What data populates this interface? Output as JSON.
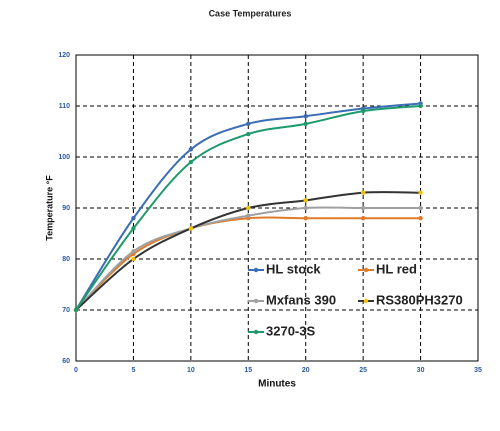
{
  "chart_data": {
    "type": "line",
    "title": "Case Temperatures",
    "x_label": "Minutes",
    "y_label": "Temperature °F",
    "x": [
      0,
      5,
      10,
      15,
      20,
      25,
      30
    ],
    "series": [
      {
        "name": "HL stock",
        "color": "#3a6db5",
        "marker_color": "#3a6db5",
        "values": [
          70,
          88,
          101.5,
          106.5,
          108,
          109.5,
          110.5
        ]
      },
      {
        "name": "HL red",
        "color": "#e07b2a",
        "marker_color": "#e07b2a",
        "values": [
          70,
          81,
          86,
          88,
          88,
          88,
          88
        ]
      },
      {
        "name": "Mxfans 390",
        "color": "#a0a0a0",
        "marker_color": "#a0a0a0",
        "values": [
          70,
          81.5,
          86,
          88.5,
          90,
          90,
          90
        ]
      },
      {
        "name": "RS380PH3270",
        "color": "#333333",
        "marker_color": "#f2c200",
        "values": [
          70,
          80,
          86,
          90,
          91.5,
          93,
          93
        ]
      },
      {
        "name": "3270-3S",
        "color": "#1f9a6a",
        "marker_color": "#1f9a6a",
        "values": [
          70,
          86,
          99,
          104.5,
          106.5,
          109,
          110
        ]
      }
    ],
    "xlim": [
      0,
      35
    ],
    "xticks": [
      0,
      5,
      10,
      15,
      20,
      25,
      30,
      35
    ],
    "ylim": [
      60,
      120
    ],
    "yticks": [
      60,
      70,
      80,
      90,
      100,
      110,
      120
    ],
    "grid": true,
    "legend": "lower right"
  }
}
